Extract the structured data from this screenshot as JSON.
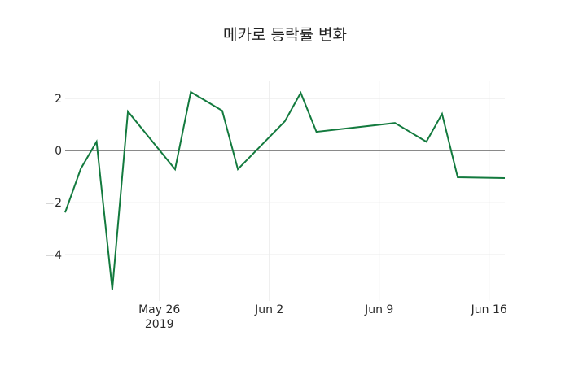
{
  "chart_data": {
    "type": "line",
    "title": "메카로 등락률 변화",
    "xlabel": "",
    "ylabel": "",
    "x": [
      "2019-05-20",
      "2019-05-21",
      "2019-05-22",
      "2019-05-23",
      "2019-05-24",
      "2019-05-27",
      "2019-05-28",
      "2019-05-30",
      "2019-05-31",
      "2019-06-03",
      "2019-06-04",
      "2019-06-05",
      "2019-06-10",
      "2019-06-12",
      "2019-06-13",
      "2019-06-14",
      "2019-06-17"
    ],
    "series": [
      {
        "name": "등락률",
        "color": "#137a3e",
        "values": [
          -2.38,
          -0.69,
          0.34,
          -5.34,
          1.5,
          -0.72,
          2.25,
          1.53,
          -0.72,
          1.13,
          2.22,
          0.72,
          1.06,
          0.34,
          1.41,
          -1.03,
          -1.06
        ]
      }
    ],
    "ylim": [
      -5.78,
      2.66
    ],
    "xlim": [
      "2019-05-20",
      "2019-06-17"
    ],
    "yticks": [
      2,
      0,
      -2,
      -4
    ],
    "ytick_labels": [
      "2",
      "0",
      "−2",
      "−4"
    ],
    "xticks": [
      "2019-05-26",
      "2019-06-02",
      "2019-06-09",
      "2019-06-16"
    ],
    "xtick_labels": [
      "May 26",
      "Jun 2",
      "Jun 9",
      "Jun 16"
    ],
    "xtick_year_label": "2019",
    "grid": true,
    "zero_line": true,
    "legend": null
  }
}
